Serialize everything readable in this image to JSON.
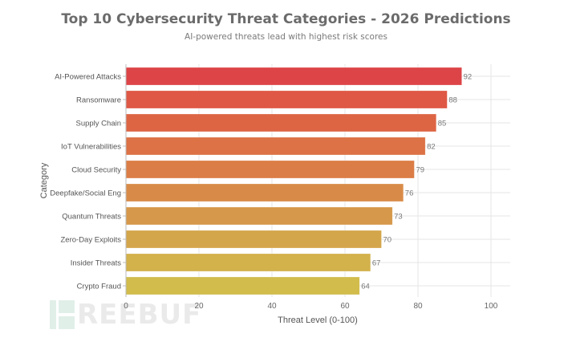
{
  "chart_data": {
    "type": "bar",
    "orientation": "horizontal",
    "title": "Top 10 Cybersecurity Threat Categories - 2026 Predictions",
    "subtitle": "AI-powered threats lead with highest risk scores",
    "xlabel": "Threat Level (0-100)",
    "ylabel": "Category",
    "categories": [
      "AI-Powered Attacks",
      "Ransomware",
      "Supply Chain",
      "IoT Vulnerabilities",
      "Cloud Security",
      "Deepfake/Social Eng",
      "Quantum Threats",
      "Zero-Day Exploits",
      "Insider Threats",
      "Crypto Fraud"
    ],
    "values": [
      92,
      88,
      85,
      82,
      79,
      76,
      73,
      70,
      67,
      64
    ],
    "colors": [
      "#dd4447",
      "#de5845",
      "#dd6544",
      "#dc7245",
      "#db7d46",
      "#d88b48",
      "#d6984a",
      "#d4a64b",
      "#d3b14b",
      "#d1bc4c"
    ],
    "xlim": [
      0,
      100
    ],
    "xticks": [
      "0",
      "20",
      "40",
      "60",
      "80",
      "100"
    ],
    "grid": true,
    "data_labels": true
  },
  "watermark": "REEBUF"
}
